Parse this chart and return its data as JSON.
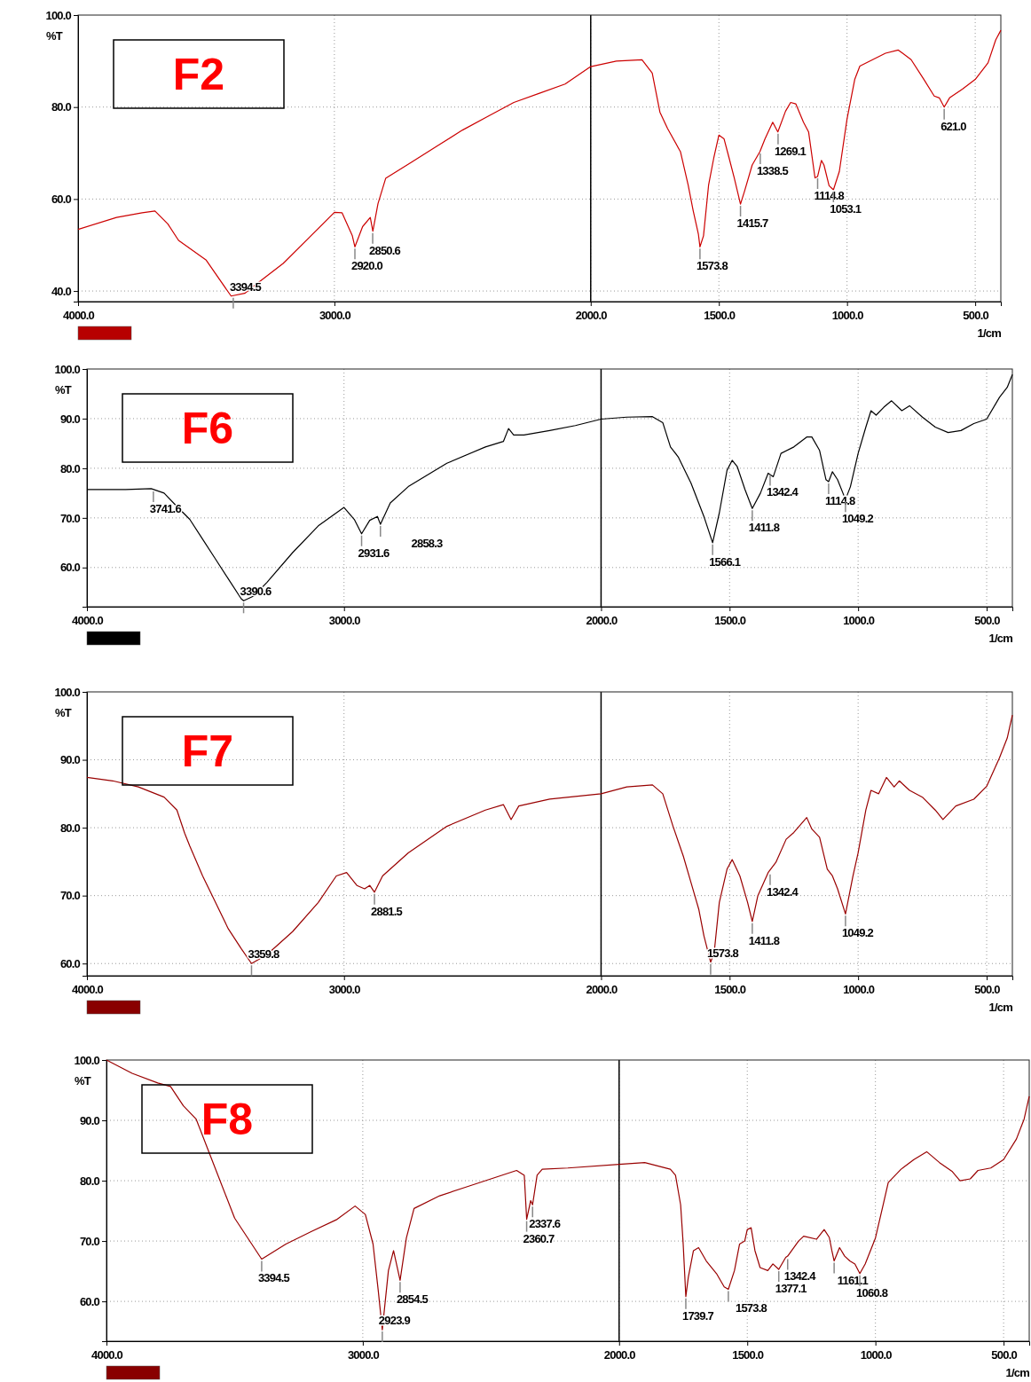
{
  "chart_data": [
    {
      "type": "line",
      "title": "F2",
      "ylabel": "%T",
      "xlabel": "1/cm",
      "xlim": [
        4000,
        400
      ],
      "ylim": [
        37.7,
        100
      ],
      "grid": true,
      "xticks": [
        {
          "value": 4000,
          "label": "4000.0"
        },
        {
          "value": 3000,
          "label": "3000.0"
        },
        {
          "value": 2000,
          "label": "2000.0"
        },
        {
          "value": 1500,
          "label": "1500.0"
        },
        {
          "value": 1000,
          "label": "1000.0"
        },
        {
          "value": 500,
          "label": "500.0"
        }
      ],
      "yticks": [
        {
          "value": 40,
          "label": "40.0"
        },
        {
          "value": 60,
          "label": "60.0"
        },
        {
          "value": 80,
          "label": "80.0"
        },
        {
          "value": 100,
          "label": "100.0"
        }
      ],
      "ref_lines": [
        {
          "axis": "x",
          "value": 2000,
          "color": "#000000"
        }
      ],
      "x": [
        4000,
        3850,
        3750,
        3700,
        3650,
        3608,
        3500,
        3403,
        3350,
        3300,
        3200,
        3097,
        3000,
        2970,
        2930,
        2920,
        2890,
        2860,
        2850,
        2830,
        2800,
        2700,
        2600,
        2500,
        2400,
        2300,
        2200,
        2100,
        2000,
        1900,
        1800,
        1760,
        1730,
        1700,
        1650,
        1620,
        1600,
        1580,
        1573.8,
        1560,
        1540,
        1520,
        1500,
        1480,
        1460,
        1440,
        1415.7,
        1400,
        1370,
        1340,
        1320,
        1290,
        1270,
        1240,
        1220,
        1200,
        1170,
        1150,
        1125,
        1114.8,
        1100,
        1090,
        1070,
        1053.1,
        1030,
        1000,
        970,
        950,
        900,
        850,
        800,
        750,
        700,
        660,
        640,
        621,
        600,
        550,
        500,
        450,
        420,
        400
      ],
      "series": [
        {
          "color": "#cc0000",
          "values": [
            53.4,
            56,
            57,
            57.4,
            54.6,
            51,
            46.7,
            38.9,
            39.5,
            41.7,
            46,
            51.7,
            57.1,
            57,
            52,
            49.6,
            54,
            56,
            53,
            59,
            64.5,
            68,
            71.5,
            75,
            78,
            81,
            83,
            85,
            88.8,
            90,
            90.3,
            87.4,
            78.9,
            75.3,
            70.3,
            63.1,
            57.4,
            52.4,
            49.6,
            52,
            63.1,
            68.9,
            73.9,
            73.1,
            68.9,
            64.6,
            58.9,
            61.7,
            67.4,
            70.3,
            73.1,
            76.7,
            74.6,
            79.1,
            81,
            80.7,
            76.7,
            74.6,
            64.6,
            64.9,
            68.4,
            67.4,
            62.9,
            62,
            66,
            77.4,
            86,
            88.9,
            90.3,
            91.7,
            92.4,
            90.3,
            86,
            82.4,
            82,
            80,
            82,
            83.9,
            86,
            89.6,
            94.6,
            96.7
          ]
        }
      ],
      "annotations": [
        {
          "text": "3394.5",
          "x": 3394.5,
          "y": 38.9
        },
        {
          "text": "2920.0",
          "x": 2920,
          "y": 49.6
        },
        {
          "text": "2850.6",
          "x": 2850.6,
          "y": 53
        },
        {
          "text": "1573.8",
          "x": 1573.8,
          "y": 49.6
        },
        {
          "text": "1415.7",
          "x": 1415.7,
          "y": 58.9
        },
        {
          "text": "1338.5",
          "x": 1338.5,
          "y": 70.3
        },
        {
          "text": "1269.1",
          "x": 1269.1,
          "y": 74.6
        },
        {
          "text": "1114.8",
          "x": 1114.8,
          "y": 64.9
        },
        {
          "text": "1053.1",
          "x": 1053.1,
          "y": 62
        },
        {
          "text": "621.0",
          "x": 621,
          "y": 80
        }
      ]
    },
    {
      "type": "line",
      "title": "F6",
      "ylabel": "%T",
      "xlabel": "1/cm",
      "xlim": [
        4000,
        400
      ],
      "ylim": [
        52.1,
        100
      ],
      "grid": true,
      "xticks": [
        {
          "value": 4000,
          "label": "4000.0"
        },
        {
          "value": 3000,
          "label": "3000.0"
        },
        {
          "value": 2000,
          "label": "2000.0"
        },
        {
          "value": 1500,
          "label": "1500.0"
        },
        {
          "value": 1000,
          "label": "1000.0"
        },
        {
          "value": 500,
          "label": "500.0"
        }
      ],
      "yticks": [
        {
          "value": 60,
          "label": "60.0"
        },
        {
          "value": 70,
          "label": "70.0"
        },
        {
          "value": 80,
          "label": "80.0"
        },
        {
          "value": 90,
          "label": "90.0"
        },
        {
          "value": 100,
          "label": "100.0"
        }
      ],
      "ref_lines": [
        {
          "axis": "x",
          "value": 2000,
          "color": "#000000"
        }
      ],
      "x": [
        4000,
        3850,
        3750,
        3700,
        3650,
        3600,
        3550,
        3500,
        3450,
        3400,
        3390.6,
        3350,
        3300,
        3200,
        3100,
        3000,
        2960,
        2931.6,
        2900,
        2870,
        2858.3,
        2820,
        2750,
        2600,
        2450,
        2380,
        2360,
        2340,
        2300,
        2200,
        2100,
        2000,
        1900,
        1800,
        1760,
        1730,
        1700,
        1650,
        1600,
        1566.1,
        1540,
        1510,
        1490,
        1470,
        1440,
        1411.8,
        1380,
        1350,
        1330,
        1300,
        1250,
        1200,
        1180,
        1150,
        1125,
        1114.8,
        1100,
        1080,
        1049.2,
        1030,
        1000,
        970,
        950,
        930,
        900,
        870,
        830,
        800,
        750,
        700,
        650,
        600,
        550,
        500,
        450,
        420,
        400
      ],
      "series": [
        {
          "color": "#000000",
          "values": [
            75.7,
            75.7,
            75.9,
            75,
            72.3,
            69.7,
            65.7,
            61.7,
            57.7,
            53.7,
            53.3,
            54.3,
            57,
            63,
            68.4,
            72.1,
            69.7,
            66.8,
            69.5,
            70.3,
            68.7,
            73,
            76.3,
            81,
            84.3,
            85.4,
            88,
            86.7,
            86.7,
            87.6,
            88.6,
            89.9,
            90.3,
            90.4,
            89.2,
            84.3,
            82.3,
            77,
            70.3,
            65,
            71,
            79.6,
            81.6,
            80.3,
            75.7,
            71.9,
            75,
            79,
            78.3,
            83,
            84.3,
            86.3,
            86.3,
            83.6,
            77.7,
            77.3,
            79.3,
            77.7,
            73.7,
            76.3,
            83,
            88.3,
            91.6,
            90.7,
            92.3,
            93.6,
            91.6,
            92.6,
            90.3,
            88.3,
            87.2,
            87.6,
            89,
            89.9,
            94.3,
            96.3,
            98.9
          ]
        }
      ],
      "annotations": [
        {
          "text": "3741.6",
          "x": 3741.6,
          "y": 75.7
        },
        {
          "text": "3390.6",
          "x": 3390.6,
          "y": 53.3
        },
        {
          "text": "2931.6",
          "x": 2931.6,
          "y": 66.8
        },
        {
          "text": "2858.3",
          "x": 2858.3,
          "y": 68.7
        },
        {
          "text": "1566.1",
          "x": 1566.1,
          "y": 65
        },
        {
          "text": "1411.8",
          "x": 1411.8,
          "y": 71.9
        },
        {
          "text": "1342.4",
          "x": 1342.4,
          "y": 79
        },
        {
          "text": "1114.8",
          "x": 1114.8,
          "y": 77.3
        },
        {
          "text": "1049.2",
          "x": 1049.2,
          "y": 73.7
        }
      ]
    },
    {
      "type": "line",
      "title": "F7",
      "ylabel": "%T",
      "xlabel": "1/cm",
      "xlim": [
        4000,
        400
      ],
      "ylim": [
        58.2,
        100
      ],
      "grid": true,
      "xticks": [
        {
          "value": 4000,
          "label": "4000.0"
        },
        {
          "value": 3000,
          "label": "3000.0"
        },
        {
          "value": 2000,
          "label": "2000.0"
        },
        {
          "value": 1500,
          "label": "1500.0"
        },
        {
          "value": 1000,
          "label": "1000.0"
        },
        {
          "value": 500,
          "label": "500.0"
        }
      ],
      "yticks": [
        {
          "value": 60,
          "label": "60.0"
        },
        {
          "value": 70,
          "label": "70.0"
        },
        {
          "value": 80,
          "label": "80.0"
        },
        {
          "value": 90,
          "label": "90.0"
        },
        {
          "value": 100,
          "label": "100.0"
        }
      ],
      "ref_lines": [
        {
          "axis": "x",
          "value": 2000,
          "color": "#000000"
        }
      ],
      "x": [
        4000,
        3900,
        3800,
        3700,
        3650,
        3620,
        3600,
        3550,
        3500,
        3450,
        3400,
        3359.8,
        3300,
        3200,
        3100,
        3030,
        2990,
        2950,
        2920,
        2900,
        2881.5,
        2850,
        2750,
        2600,
        2450,
        2380,
        2350,
        2320,
        2200,
        2000,
        1900,
        1800,
        1760,
        1720,
        1680,
        1650,
        1620,
        1600,
        1573.8,
        1560,
        1540,
        1510,
        1490,
        1460,
        1430,
        1411.8,
        1390,
        1350,
        1320,
        1280,
        1250,
        1200,
        1180,
        1150,
        1120,
        1100,
        1080,
        1049.2,
        1020,
        1000,
        970,
        950,
        920,
        890,
        860,
        840,
        800,
        750,
        700,
        670,
        620,
        550,
        500,
        450,
        420,
        400
      ],
      "series": [
        {
          "color": "#990000",
          "values": [
            87.4,
            86.9,
            86,
            84.5,
            82.6,
            79.2,
            77.3,
            72.9,
            69,
            65.1,
            62.2,
            60,
            61.3,
            64.7,
            69,
            72.9,
            73.4,
            71.5,
            71,
            71.5,
            70.5,
            72.9,
            76.3,
            80.2,
            82.6,
            83.4,
            81.2,
            83.2,
            84.2,
            85,
            86,
            86.3,
            85,
            80.2,
            75.8,
            71.9,
            68,
            64.1,
            60.2,
            61.6,
            69,
            73.9,
            75.3,
            72.9,
            69,
            66.2,
            70,
            73.4,
            74.9,
            78.3,
            79.3,
            81.5,
            79.8,
            78.6,
            73.9,
            72.9,
            71,
            67.3,
            72.9,
            76.3,
            82.6,
            85.5,
            85,
            87.4,
            86,
            86.9,
            85.5,
            84.5,
            82.6,
            81.2,
            83.2,
            84.2,
            86.1,
            90.3,
            93.2,
            96.6
          ]
        }
      ],
      "annotations": [
        {
          "text": "3359.8",
          "x": 3359.8,
          "y": 60
        },
        {
          "text": "2881.5",
          "x": 2881.5,
          "y": 70.5
        },
        {
          "text": "1573.8",
          "x": 1573.8,
          "y": 60.2
        },
        {
          "text": "1411.8",
          "x": 1411.8,
          "y": 66.2
        },
        {
          "text": "1342.4",
          "x": 1342.4,
          "y": 73.4
        },
        {
          "text": "1049.2",
          "x": 1049.2,
          "y": 67.3
        }
      ]
    },
    {
      "type": "line",
      "title": "F8",
      "ylabel": "%T",
      "xlabel": "1/cm",
      "xlim": [
        4000,
        400
      ],
      "ylim": [
        53.4,
        100
      ],
      "grid": true,
      "xticks": [
        {
          "value": 4000,
          "label": "4000.0"
        },
        {
          "value": 3000,
          "label": "3000.0"
        },
        {
          "value": 2000,
          "label": "2000.0"
        },
        {
          "value": 1500,
          "label": "1500.0"
        },
        {
          "value": 1000,
          "label": "1000.0"
        },
        {
          "value": 500,
          "label": "500.0"
        }
      ],
      "yticks": [
        {
          "value": 60,
          "label": "60.0"
        },
        {
          "value": 70,
          "label": "70.0"
        },
        {
          "value": 80,
          "label": "80.0"
        },
        {
          "value": 90,
          "label": "90.0"
        },
        {
          "value": 100,
          "label": "100.0"
        }
      ],
      "ref_lines": [
        {
          "axis": "x",
          "value": 2000,
          "color": "#000000"
        }
      ],
      "x": [
        4000,
        3900,
        3800,
        3750,
        3700,
        3650,
        3600,
        3500,
        3394.5,
        3300,
        3200,
        3100,
        3030,
        2990,
        2960,
        2940,
        2923.9,
        2900,
        2880,
        2854.5,
        2830,
        2800,
        2700,
        2600,
        2500,
        2400,
        2370,
        2360.7,
        2345,
        2337.6,
        2320,
        2300,
        2200,
        2000,
        1900,
        1800,
        1780,
        1760,
        1750,
        1739.7,
        1730,
        1710,
        1690,
        1660,
        1620,
        1590,
        1573.8,
        1550,
        1530,
        1510,
        1500,
        1485,
        1470,
        1450,
        1420,
        1400,
        1377.1,
        1350,
        1342.4,
        1300,
        1280,
        1230,
        1200,
        1180,
        1170,
        1161.1,
        1140,
        1120,
        1100,
        1080,
        1060.8,
        1040,
        1000,
        970,
        950,
        900,
        850,
        800,
        750,
        700,
        670,
        630,
        600,
        550,
        500,
        450,
        420,
        400
      ],
      "series": [
        {
          "color": "#990000",
          "values": [
            100,
            97.8,
            96.2,
            95.6,
            92.4,
            90.2,
            84.7,
            73.8,
            67,
            69.5,
            71.6,
            73.6,
            75.8,
            74.4,
            69.5,
            61.9,
            55.3,
            65.1,
            68.4,
            63.5,
            70.5,
            75.4,
            77.5,
            78.9,
            80.3,
            81.7,
            80.9,
            73.6,
            76.7,
            76,
            80.9,
            81.9,
            82.1,
            82.7,
            83,
            81.9,
            80.9,
            76,
            69.5,
            60.8,
            64,
            68.4,
            68.9,
            66.7,
            64.6,
            62.4,
            62,
            65.1,
            69.5,
            70,
            71.9,
            72.2,
            68.4,
            65.6,
            65.1,
            66.2,
            65.3,
            67.3,
            67.5,
            70,
            70.8,
            70.3,
            71.9,
            70.6,
            68.4,
            66.7,
            68.9,
            67.5,
            66.7,
            66.2,
            64.6,
            66.2,
            70.5,
            76,
            79.7,
            81.9,
            83.5,
            84.8,
            83,
            81.5,
            80,
            80.3,
            81.7,
            82.1,
            83.5,
            86.9,
            90.2,
            94
          ]
        }
      ],
      "annotations": [
        {
          "text": "3394.5",
          "x": 3394.5,
          "y": 67
        },
        {
          "text": "2923.9",
          "x": 2923.9,
          "y": 55.3
        },
        {
          "text": "2854.5",
          "x": 2854.5,
          "y": 63.5
        },
        {
          "text": "2337.6",
          "x": 2337.6,
          "y": 76
        },
        {
          "text": "2360.7",
          "x": 2360.7,
          "y": 73.6
        },
        {
          "text": "1739.7",
          "x": 1739.7,
          "y": 60.8
        },
        {
          "text": "1573.8",
          "x": 1573.8,
          "y": 62
        },
        {
          "text": "1342.4",
          "x": 1342.4,
          "y": 67.3
        },
        {
          "text": "1377.1",
          "x": 1377.1,
          "y": 65.3
        },
        {
          "text": "1161.1",
          "x": 1161.1,
          "y": 66.7
        },
        {
          "text": "1060.8",
          "x": 1060.8,
          "y": 64.6
        }
      ]
    }
  ]
}
